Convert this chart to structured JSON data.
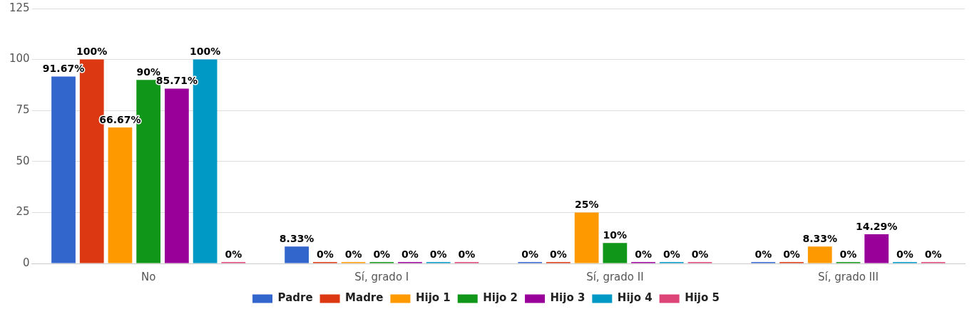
{
  "chart_data": {
    "type": "bar",
    "categories": [
      "No",
      "Sí, grado I",
      "Sí, grado II",
      "Sí, grado III"
    ],
    "series": [
      {
        "name": "Padre",
        "color": "#3366cc",
        "values": [
          91.67,
          8.33,
          0,
          0
        ],
        "value_labels": [
          "91.67%",
          "8.33%",
          "0%",
          "0%"
        ]
      },
      {
        "name": "Madre",
        "color": "#dc3912",
        "values": [
          100,
          0,
          0,
          0
        ],
        "value_labels": [
          "100%",
          "0%",
          "0%",
          "0%"
        ]
      },
      {
        "name": "Hijo 1",
        "color": "#ff9900",
        "values": [
          66.67,
          0,
          25,
          8.33
        ],
        "value_labels": [
          "66.67%",
          "0%",
          "25%",
          "8.33%"
        ]
      },
      {
        "name": "Hijo 2",
        "color": "#109618",
        "values": [
          90,
          0,
          10,
          0
        ],
        "value_labels": [
          "90%",
          "0%",
          "10%",
          "0%"
        ]
      },
      {
        "name": "Hijo 3",
        "color": "#990099",
        "values": [
          85.71,
          0,
          0,
          14.29
        ],
        "value_labels": [
          "85.71%",
          "0%",
          "0%",
          "14.29%"
        ]
      },
      {
        "name": "Hijo 4",
        "color": "#0099c6",
        "values": [
          100,
          0,
          0,
          0
        ],
        "value_labels": [
          "100%",
          "0%",
          "0%",
          "0%"
        ]
      },
      {
        "name": "Hijo 5",
        "color": "#dd4477",
        "values": [
          0,
          0,
          0,
          0
        ],
        "value_labels": [
          "0%",
          "0%",
          "0%",
          "0%"
        ]
      }
    ],
    "ylim": [
      0,
      125
    ],
    "yticks": [
      0,
      25,
      50,
      75,
      100,
      125
    ],
    "grid": "y",
    "legend": "bottom"
  }
}
